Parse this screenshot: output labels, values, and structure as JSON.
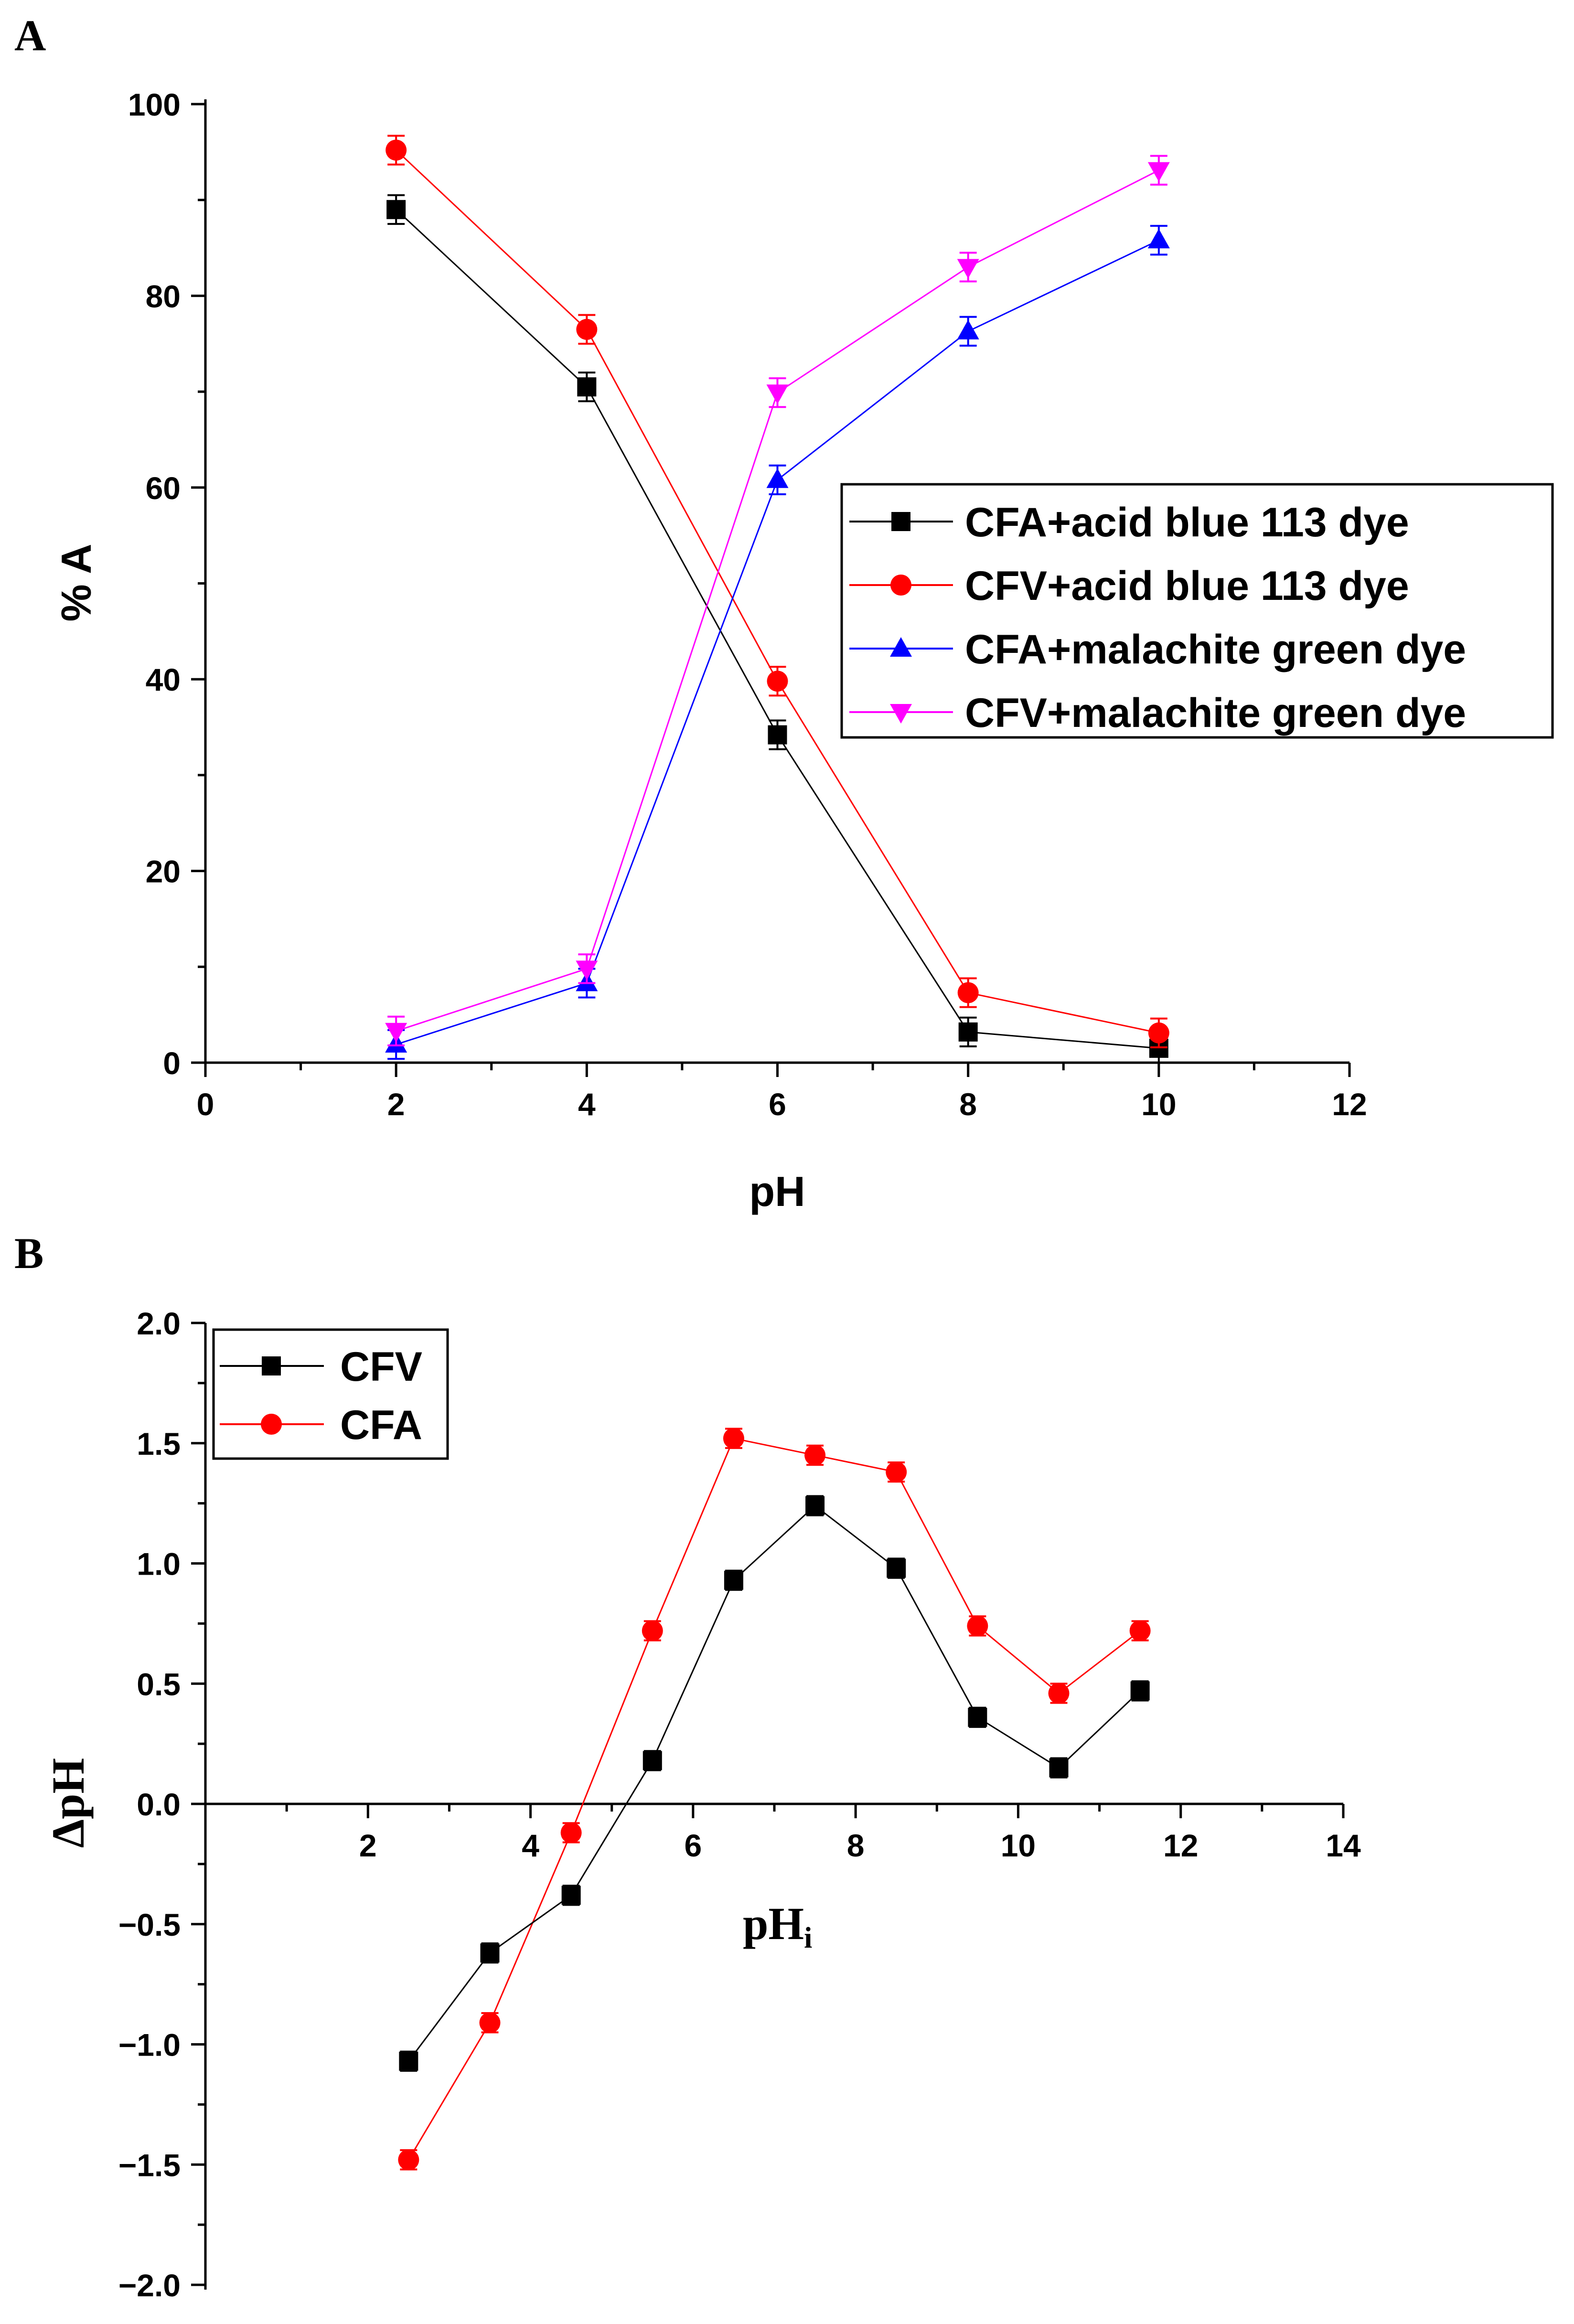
{
  "colors": {
    "black": "#000000",
    "red": "#ff0000",
    "blue": "#0000ff",
    "magenta": "#ff00ff"
  },
  "chart_data": [
    {
      "panel": "A",
      "type": "line",
      "xlabel": "pH",
      "ylabel": "% A",
      "xlim": [
        0,
        12
      ],
      "ylim": [
        0,
        100
      ],
      "xticks": [
        0,
        2,
        4,
        6,
        8,
        10,
        12
      ],
      "yticks": [
        0,
        20,
        40,
        60,
        80,
        100
      ],
      "legend_position": "center-right",
      "error_bar": 1.5,
      "series": [
        {
          "name": "CFA+acid blue 113 dye",
          "marker": "square",
          "color": "#000000",
          "x": [
            2,
            4,
            6,
            8,
            10
          ],
          "y": [
            89,
            70.5,
            34.2,
            3.2,
            1.5
          ]
        },
        {
          "name": "CFV+acid blue 113 dye",
          "marker": "circle",
          "color": "#ff0000",
          "x": [
            2,
            4,
            6,
            8,
            10
          ],
          "y": [
            95.2,
            76.5,
            39.8,
            7.3,
            3.1
          ]
        },
        {
          "name": "CFA+malachite green dye",
          "marker": "triangle-up",
          "color": "#0000ff",
          "x": [
            2,
            4,
            6,
            8,
            10
          ],
          "y": [
            1.9,
            8.3,
            60.8,
            76.3,
            85.8
          ]
        },
        {
          "name": "CFV+malachite green dye",
          "marker": "triangle-down",
          "color": "#ff00ff",
          "x": [
            2,
            4,
            6,
            8,
            10
          ],
          "y": [
            3.3,
            9.8,
            69.9,
            83.0,
            93.1
          ]
        }
      ]
    },
    {
      "panel": "B",
      "type": "line",
      "xlabel_main": "pH",
      "xlabel_sub": "i",
      "ylabel": "ΔpH",
      "xlim": [
        0,
        14
      ],
      "ylim": [
        -2.0,
        2.0
      ],
      "xticks": [
        2,
        4,
        6,
        8,
        10,
        12,
        14
      ],
      "yticks": [
        -2.0,
        -1.5,
        -1.0,
        -0.5,
        0.0,
        0.5,
        1.0,
        1.5,
        2.0
      ],
      "ytick_labels": [
        "−2.0",
        "−1.5",
        "−1.0",
        "−0.5",
        "0.0",
        "0.5",
        "1.0",
        "1.5",
        "2.0"
      ],
      "legend_position": "top-left",
      "error_bar": 0.04,
      "series": [
        {
          "name": "CFV",
          "marker": "square",
          "color": "#000000",
          "x": [
            2.5,
            3.5,
            4.5,
            5.5,
            6.5,
            7.5,
            8.5,
            9.5,
            10.5,
            11.5
          ],
          "y": [
            -1.07,
            -0.62,
            -0.38,
            0.18,
            0.93,
            1.24,
            0.98,
            0.36,
            0.15,
            0.47
          ]
        },
        {
          "name": "CFA",
          "marker": "circle",
          "color": "#ff0000",
          "x": [
            2.5,
            3.5,
            4.5,
            5.5,
            6.5,
            7.5,
            8.5,
            9.5,
            10.5,
            11.5
          ],
          "y": [
            -1.48,
            -0.91,
            -0.12,
            0.72,
            1.52,
            1.45,
            1.38,
            0.74,
            0.46,
            0.72
          ]
        }
      ]
    }
  ]
}
